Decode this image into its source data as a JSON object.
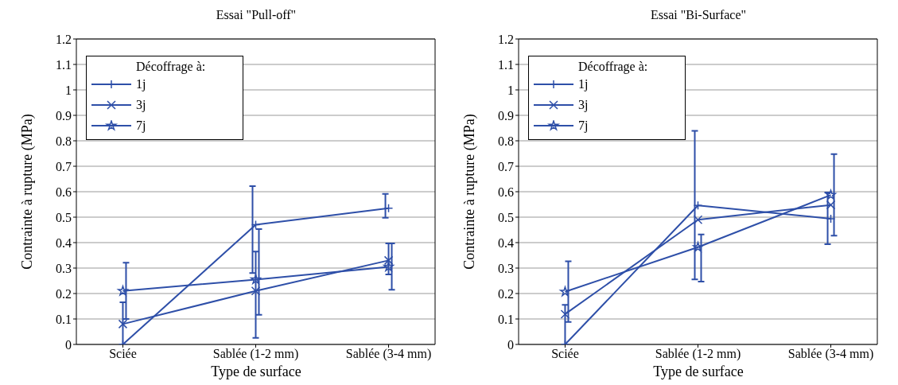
{
  "chart_data": [
    {
      "type": "line",
      "title": "Essai \"Pull-off\"",
      "xlabel": "Type de surface",
      "ylabel": "Contrainte à rupture (MPa)",
      "legend_title": "Décoffrage à:",
      "categories": [
        "Sciée",
        "Sablée (1-2 mm)",
        "Sablée (3-4 mm)"
      ],
      "ylim": [
        0,
        1.2
      ],
      "yticks": [
        0,
        0.1,
        0.2,
        0.3,
        0.4,
        0.5,
        0.6,
        0.7,
        0.8,
        0.9,
        1,
        1.1,
        1.2
      ],
      "grid": "y",
      "legend": "top left",
      "series": [
        {
          "name": "1j",
          "color": "#2e4fa8",
          "marker": "plus",
          "values": [
            0,
            0.47,
            0.535
          ],
          "errors": [
            null,
            [
              0.28,
              0.62
            ],
            [
              0.496,
              0.59
            ]
          ]
        },
        {
          "name": "3j",
          "color": "#2e4fa8",
          "marker": "cross",
          "values": [
            0.08,
            0.21,
            0.33
          ],
          "errors": [
            [
              0,
              0.165
            ],
            [
              0.026,
              0.364
            ],
            [
              0.274,
              0.396
            ]
          ]
        },
        {
          "name": "7j",
          "color": "#2e4fa8",
          "marker": "star",
          "values": [
            0.21,
            0.255,
            0.305
          ],
          "errors": [
            [
              0.1,
              0.32
            ],
            [
              0.116,
              0.452
            ],
            [
              0.214,
              0.396
            ]
          ]
        }
      ]
    },
    {
      "type": "line",
      "title": "Essai \"Bi-Surface\"",
      "xlabel": "Type de surface",
      "ylabel": "Contrainte à rupture (MPa)",
      "legend_title": "Décoffrage à:",
      "categories": [
        "Sciée",
        "Sablée (1-2 mm)",
        "Sablée (3-4 mm)"
      ],
      "ylim": [
        0,
        1.2
      ],
      "yticks": [
        0,
        0.1,
        0.2,
        0.3,
        0.4,
        0.5,
        0.6,
        0.7,
        0.8,
        0.9,
        1,
        1.1,
        1.2
      ],
      "grid": "y",
      "legend": "top left",
      "series": [
        {
          "name": "1j",
          "color": "#2e4fa8",
          "marker": "plus",
          "values": [
            0,
            0.546,
            0.494
          ],
          "errors": [
            null,
            [
              0.255,
              0.837
            ],
            [
              0.393,
              0.595
            ]
          ]
        },
        {
          "name": "3j",
          "color": "#2e4fa8",
          "marker": "cross",
          "values": [
            0.119,
            0.49,
            0.548
          ],
          "errors": [
            [
              0,
              0.155
            ],
            null,
            null
          ]
        },
        {
          "name": "7j",
          "color": "#2e4fa8",
          "marker": "star",
          "values": [
            0.207,
            0.382,
            0.587
          ],
          "errors": [
            [
              0.088,
              0.326
            ],
            [
              0.246,
              0.431
            ],
            [
              0.426,
              0.746
            ]
          ]
        }
      ]
    }
  ]
}
